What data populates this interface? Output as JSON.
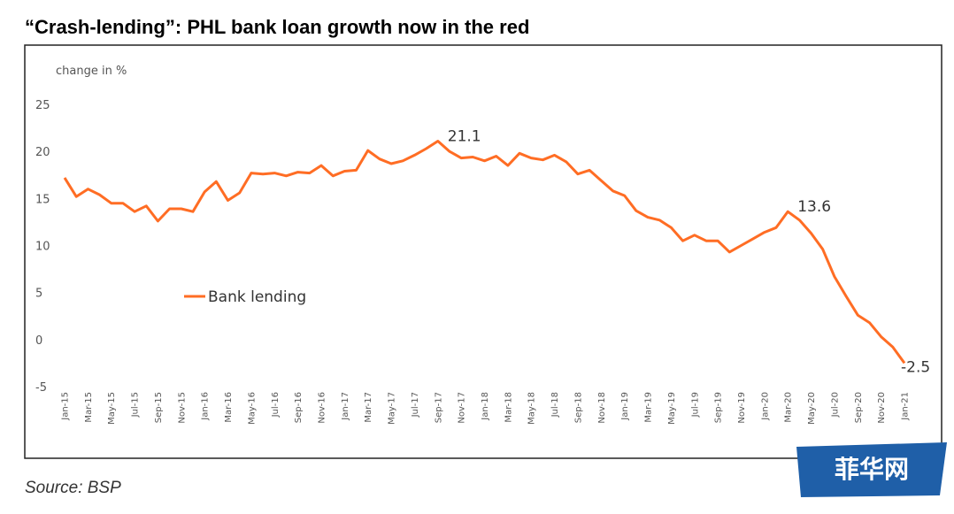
{
  "chart_data": {
    "type": "line",
    "title": "“Crash-lending”: PHL bank loan growth now in the red",
    "y_label": "change in %",
    "source": "Source: BSP",
    "watermark": "菲华网",
    "categories": [
      "Jan-15",
      null,
      "Mar-15",
      null,
      "May-15",
      null,
      "Jul-15",
      null,
      "Sep-15",
      null,
      "Nov-15",
      null,
      "Jan-16",
      null,
      "Mar-16",
      null,
      "May-16",
      null,
      "Jul-16",
      null,
      "Sep-16",
      null,
      "Nov-16",
      null,
      "Jan-17",
      null,
      "Mar-17",
      null,
      "May-17",
      null,
      "Jul-17",
      null,
      "Sep-17",
      null,
      "Nov-17",
      null,
      "Jan-18",
      null,
      "Mar-18",
      null,
      "May-18",
      null,
      "Jul-18",
      null,
      "Sep-18",
      null,
      "Nov-18",
      null,
      "Jan-19",
      null,
      "Mar-19",
      null,
      "May-19",
      null,
      "Jul-19",
      null,
      "Sep-19",
      null,
      "Nov-19",
      null,
      "Jan-20",
      null,
      "Mar-20",
      null,
      "May-20",
      null,
      "Jul-20",
      null,
      "Sep-20",
      null,
      "Nov-20",
      null,
      "Jan-21"
    ],
    "series": [
      {
        "name": "Bank lending",
        "color": "#ff6d24",
        "values": [
          17.2,
          15.2,
          16.0,
          15.4,
          14.5,
          14.5,
          13.6,
          14.2,
          12.6,
          13.9,
          13.9,
          13.6,
          15.7,
          16.8,
          14.8,
          15.6,
          17.7,
          17.6,
          17.7,
          17.4,
          17.8,
          17.7,
          18.5,
          17.4,
          17.9,
          18.0,
          20.1,
          19.2,
          18.7,
          19.0,
          19.6,
          20.3,
          21.1,
          20.0,
          19.3,
          19.4,
          19.0,
          19.5,
          18.5,
          19.8,
          19.3,
          19.1,
          19.6,
          18.9,
          17.6,
          18.0,
          16.9,
          15.8,
          15.3,
          13.7,
          13.0,
          12.7,
          11.9,
          10.5,
          11.1,
          10.5,
          10.5,
          9.3,
          10.0,
          10.7,
          11.4,
          11.9,
          13.6,
          12.7,
          11.3,
          9.6,
          6.7,
          4.6,
          2.6,
          1.8,
          0.3,
          -0.8,
          -2.5
        ],
        "value_labels": [
          null,
          null,
          null,
          null,
          null,
          null,
          null,
          null,
          null,
          null,
          null,
          null,
          null,
          null,
          null,
          null,
          null,
          null,
          null,
          null,
          null,
          null,
          null,
          null,
          null,
          null,
          null,
          null,
          null,
          null,
          null,
          null,
          "21.1",
          null,
          null,
          null,
          null,
          null,
          null,
          null,
          null,
          null,
          null,
          null,
          null,
          null,
          null,
          null,
          null,
          null,
          null,
          null,
          null,
          null,
          null,
          null,
          null,
          null,
          null,
          null,
          null,
          null,
          "13.6",
          null,
          null,
          null,
          null,
          null,
          null,
          null,
          null,
          null,
          "-2.5"
        ]
      }
    ],
    "negative_label_color": "#ff0000",
    "ylim": [
      -5,
      25
    ],
    "yticks": [
      -5,
      0,
      5,
      10,
      15,
      20,
      25
    ],
    "grid": false
  }
}
